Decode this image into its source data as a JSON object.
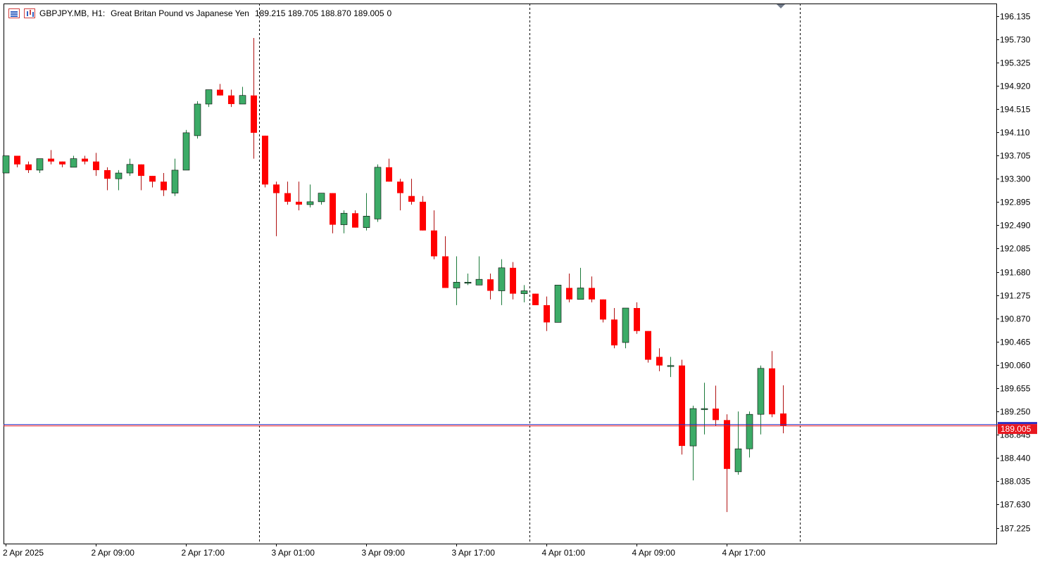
{
  "header": {
    "symbol": "GBPJPY.MB,",
    "timeframe": "H1:",
    "description": "Great Britan Pound vs Japanese Yen",
    "ohlc": "189.215 189.705 188.870 189.005",
    "extra": "0"
  },
  "colors": {
    "bull": "#3cab67",
    "bear": "#ff0000",
    "wick_bull": "#1a7a3a",
    "wick_bear": "#b01010",
    "current_price_tag": "#e8171f",
    "bid_line": "#3030c0",
    "grid_separator": "#000000"
  },
  "chart_data": {
    "type": "candlestick",
    "symbol": "GBPJPY.MB",
    "timeframe": "H1",
    "title": "Great Britan Pound vs Japanese Yen",
    "ylim": [
      186.95,
      196.35
    ],
    "y_ticks": [
      "196.135",
      "195.730",
      "195.325",
      "194.920",
      "194.515",
      "194.110",
      "193.705",
      "193.300",
      "192.895",
      "192.490",
      "192.085",
      "191.680",
      "191.275",
      "190.870",
      "190.465",
      "190.060",
      "189.655",
      "189.250",
      "188.845",
      "188.440",
      "188.035",
      "187.630",
      "187.225"
    ],
    "x_ticks": [
      "2 Apr 2025",
      "2 Apr 09:00",
      "2 Apr 17:00",
      "3 Apr 01:00",
      "3 Apr 09:00",
      "3 Apr 17:00",
      "4 Apr 01:00",
      "4 Apr 09:00",
      "4 Apr 17:00"
    ],
    "x_tick_bar_index": [
      0,
      8,
      16,
      24,
      32,
      40,
      48,
      56,
      64
    ],
    "day_separators_after_bar": [
      22.5,
      46.5,
      70.5
    ],
    "current_price": "189.005",
    "candles": [
      {
        "o": 193.4,
        "h": 193.7,
        "l": 193.4,
        "c": 193.7
      },
      {
        "o": 193.7,
        "h": 193.7,
        "l": 193.5,
        "c": 193.55
      },
      {
        "o": 193.55,
        "h": 193.6,
        "l": 193.4,
        "c": 193.45
      },
      {
        "o": 193.45,
        "h": 193.65,
        "l": 193.4,
        "c": 193.65
      },
      {
        "o": 193.65,
        "h": 193.8,
        "l": 193.55,
        "c": 193.6
      },
      {
        "o": 193.6,
        "h": 193.6,
        "l": 193.5,
        "c": 193.55
      },
      {
        "o": 193.5,
        "h": 193.7,
        "l": 193.5,
        "c": 193.65
      },
      {
        "o": 193.65,
        "h": 193.7,
        "l": 193.55,
        "c": 193.6
      },
      {
        "o": 193.6,
        "h": 193.75,
        "l": 193.35,
        "c": 193.45
      },
      {
        "o": 193.45,
        "h": 193.5,
        "l": 193.1,
        "c": 193.3
      },
      {
        "o": 193.3,
        "h": 193.45,
        "l": 193.1,
        "c": 193.4
      },
      {
        "o": 193.4,
        "h": 193.65,
        "l": 193.35,
        "c": 193.55
      },
      {
        "o": 193.55,
        "h": 193.55,
        "l": 193.1,
        "c": 193.35
      },
      {
        "o": 193.35,
        "h": 193.35,
        "l": 193.15,
        "c": 193.25
      },
      {
        "o": 193.25,
        "h": 193.4,
        "l": 193.0,
        "c": 193.1
      },
      {
        "o": 193.05,
        "h": 193.65,
        "l": 193.0,
        "c": 193.45
      },
      {
        "o": 193.45,
        "h": 194.15,
        "l": 193.45,
        "c": 194.1
      },
      {
        "o": 194.05,
        "h": 194.65,
        "l": 194.0,
        "c": 194.6
      },
      {
        "o": 194.6,
        "h": 194.85,
        "l": 194.55,
        "c": 194.85
      },
      {
        "o": 194.85,
        "h": 194.95,
        "l": 194.75,
        "c": 194.75
      },
      {
        "o": 194.75,
        "h": 194.85,
        "l": 194.55,
        "c": 194.6
      },
      {
        "o": 194.6,
        "h": 194.9,
        "l": 194.6,
        "c": 194.75
      },
      {
        "o": 194.75,
        "h": 195.75,
        "l": 193.65,
        "c": 194.1
      },
      {
        "o": 194.05,
        "h": 194.05,
        "l": 193.15,
        "c": 193.2
      },
      {
        "o": 193.2,
        "h": 193.25,
        "l": 192.3,
        "c": 193.05
      },
      {
        "o": 193.05,
        "h": 193.25,
        "l": 192.85,
        "c": 192.9
      },
      {
        "o": 192.9,
        "h": 193.25,
        "l": 192.75,
        "c": 192.85
      },
      {
        "o": 192.85,
        "h": 193.2,
        "l": 192.8,
        "c": 192.9
      },
      {
        "o": 192.9,
        "h": 193.05,
        "l": 192.85,
        "c": 193.05
      },
      {
        "o": 193.05,
        "h": 193.05,
        "l": 192.35,
        "c": 192.5
      },
      {
        "o": 192.5,
        "h": 192.75,
        "l": 192.35,
        "c": 192.7
      },
      {
        "o": 192.7,
        "h": 192.75,
        "l": 192.45,
        "c": 192.45
      },
      {
        "o": 192.45,
        "h": 193.05,
        "l": 192.4,
        "c": 192.65
      },
      {
        "o": 192.6,
        "h": 193.55,
        "l": 192.55,
        "c": 193.5
      },
      {
        "o": 193.5,
        "h": 193.65,
        "l": 193.25,
        "c": 193.25
      },
      {
        "o": 193.25,
        "h": 193.3,
        "l": 192.75,
        "c": 193.05
      },
      {
        "o": 193.0,
        "h": 193.3,
        "l": 192.85,
        "c": 192.9
      },
      {
        "o": 192.9,
        "h": 193.0,
        "l": 192.4,
        "c": 192.4
      },
      {
        "o": 192.4,
        "h": 192.75,
        "l": 191.9,
        "c": 191.95
      },
      {
        "o": 191.95,
        "h": 192.3,
        "l": 191.4,
        "c": 191.4
      },
      {
        "o": 191.4,
        "h": 191.95,
        "l": 191.1,
        "c": 191.5
      },
      {
        "o": 191.5,
        "h": 191.65,
        "l": 191.45,
        "c": 191.5
      },
      {
        "o": 191.45,
        "h": 191.95,
        "l": 191.45,
        "c": 191.55
      },
      {
        "o": 191.55,
        "h": 191.65,
        "l": 191.2,
        "c": 191.35
      },
      {
        "o": 191.35,
        "h": 191.9,
        "l": 191.1,
        "c": 191.75
      },
      {
        "o": 191.75,
        "h": 191.85,
        "l": 191.2,
        "c": 191.3
      },
      {
        "o": 191.3,
        "h": 191.45,
        "l": 191.15,
        "c": 191.35
      },
      {
        "o": 191.3,
        "h": 191.3,
        "l": 191.1,
        "c": 191.1
      },
      {
        "o": 191.1,
        "h": 191.25,
        "l": 190.65,
        "c": 190.8
      },
      {
        "o": 190.8,
        "h": 191.45,
        "l": 190.8,
        "c": 191.45
      },
      {
        "o": 191.4,
        "h": 191.65,
        "l": 191.15,
        "c": 191.2
      },
      {
        "o": 191.2,
        "h": 191.75,
        "l": 191.2,
        "c": 191.4
      },
      {
        "o": 191.4,
        "h": 191.6,
        "l": 191.15,
        "c": 191.2
      },
      {
        "o": 191.2,
        "h": 191.2,
        "l": 190.8,
        "c": 190.85
      },
      {
        "o": 190.85,
        "h": 191.05,
        "l": 190.35,
        "c": 190.4
      },
      {
        "o": 190.45,
        "h": 191.05,
        "l": 190.35,
        "c": 191.05
      },
      {
        "o": 191.05,
        "h": 191.15,
        "l": 190.6,
        "c": 190.65
      },
      {
        "o": 190.65,
        "h": 190.65,
        "l": 190.1,
        "c": 190.15
      },
      {
        "o": 190.2,
        "h": 190.35,
        "l": 189.95,
        "c": 190.05
      },
      {
        "o": 190.05,
        "h": 190.2,
        "l": 189.85,
        "c": 190.05
      },
      {
        "o": 190.05,
        "h": 190.15,
        "l": 188.5,
        "c": 188.65
      },
      {
        "o": 188.65,
        "h": 189.35,
        "l": 188.05,
        "c": 189.3
      },
      {
        "o": 189.3,
        "h": 189.75,
        "l": 188.85,
        "c": 189.3
      },
      {
        "o": 189.3,
        "h": 189.7,
        "l": 189.0,
        "c": 189.1
      },
      {
        "o": 189.1,
        "h": 189.2,
        "l": 187.5,
        "c": 188.25
      },
      {
        "o": 188.2,
        "h": 189.25,
        "l": 188.15,
        "c": 188.6
      },
      {
        "o": 188.6,
        "h": 189.25,
        "l": 188.45,
        "c": 189.2
      },
      {
        "o": 189.2,
        "h": 190.05,
        "l": 188.85,
        "c": 190.0
      },
      {
        "o": 190.0,
        "h": 190.3,
        "l": 189.15,
        "c": 189.2
      },
      {
        "o": 189.215,
        "h": 189.705,
        "l": 188.87,
        "c": 189.005
      }
    ]
  }
}
